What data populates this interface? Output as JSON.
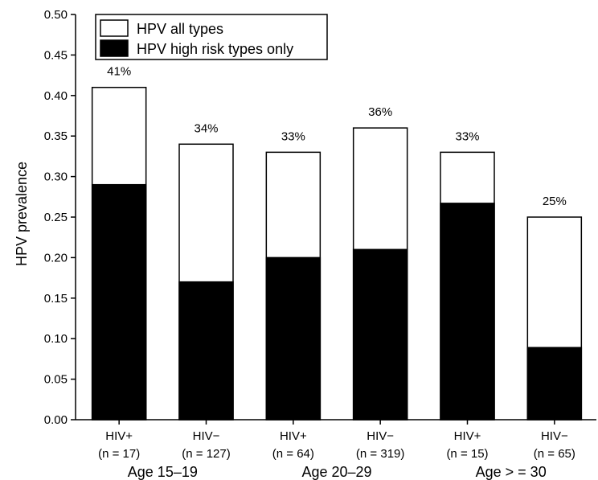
{
  "chart_data": {
    "type": "bar",
    "ylabel": "HPV prevalence",
    "ylim": [
      0,
      0.5
    ],
    "yticks": [
      "0.00",
      "0.05",
      "0.10",
      "0.15",
      "0.20",
      "0.25",
      "0.30",
      "0.35",
      "0.40",
      "0.45",
      "0.50"
    ],
    "categories": [
      "HIV+",
      "HIV−",
      "HIV+",
      "HIV−",
      "HIV+",
      "HIV−"
    ],
    "sample_sizes": [
      "(n = 17)",
      "(n = 127)",
      "(n = 64)",
      "(n = 319)",
      "(n = 15)",
      "(n = 65)"
    ],
    "groups": [
      "Age 15–19",
      "Age 20–29",
      "Age > = 30"
    ],
    "series": [
      {
        "name": "HPV all types",
        "color": "#ffffff",
        "values": [
          0.41,
          0.34,
          0.33,
          0.36,
          0.33,
          0.25
        ]
      },
      {
        "name": "HPV high risk types only",
        "color": "#000000",
        "values": [
          0.29,
          0.17,
          0.2,
          0.21,
          0.267,
          0.089
        ]
      }
    ],
    "data_labels": [
      "41%",
      "34%",
      "33%",
      "36%",
      "33%",
      "25%"
    ],
    "legend_position": "top-left",
    "grid": false
  }
}
